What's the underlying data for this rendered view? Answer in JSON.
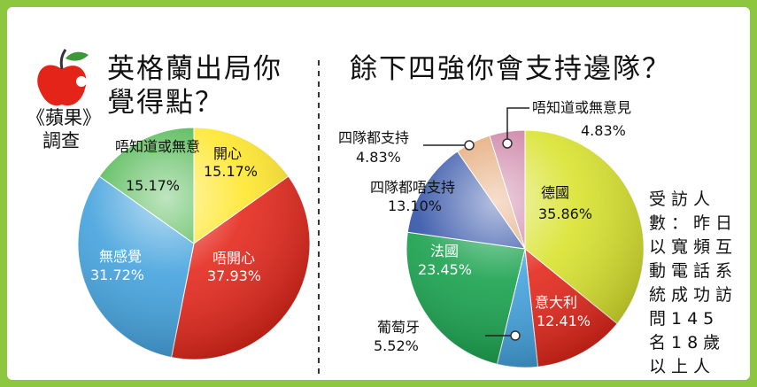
{
  "brand": {
    "line1": "《蘋果》",
    "line2": "調查"
  },
  "note": "受訪人數：昨日以寬頻互動電話系統成功訪問145名18歲以上人士。",
  "chart_data": [
    {
      "type": "pie",
      "title": "英格蘭出局你覺得點？",
      "title_lines": [
        "英格蘭出局你",
        "覺得點？"
      ],
      "slices": [
        {
          "label": "開心",
          "value": 15.17,
          "value_text": "15.17%",
          "color": "#ffe629"
        },
        {
          "label": "唔開心",
          "value": 37.93,
          "value_text": "37.93%",
          "color": "#e42418"
        },
        {
          "label": "無感覺",
          "value": 31.72,
          "value_text": "31.72%",
          "color": "#3fa0dc"
        },
        {
          "label": "唔知道或無意",
          "value": 15.17,
          "value_text": "15.17%",
          "color": "#49b54b"
        }
      ]
    },
    {
      "type": "pie",
      "title": "餘下四強你會支持邊隊？",
      "slices": [
        {
          "label": "德國",
          "value": 35.86,
          "value_text": "35.86%",
          "color": "#d8e22a"
        },
        {
          "label": "意大利",
          "value": 12.41,
          "value_text": "12.41%",
          "color": "#e42418"
        },
        {
          "label": "葡萄牙",
          "value": 5.52,
          "value_text": "5.52%",
          "color": "#3fa0dc"
        },
        {
          "label": "法國",
          "value": 23.45,
          "value_text": "23.45%",
          "color": "#14a04a"
        },
        {
          "label": "四隊都唔支持",
          "value": 13.1,
          "value_text": "13.10%",
          "color": "#2e4fa6"
        },
        {
          "label": "四隊都支持",
          "value": 4.83,
          "value_text": "4.83%",
          "color": "#e3a36f"
        },
        {
          "label": "唔知道或無意見",
          "value": 4.83,
          "value_text": "4.83%",
          "color": "#c97ba0"
        }
      ]
    }
  ]
}
